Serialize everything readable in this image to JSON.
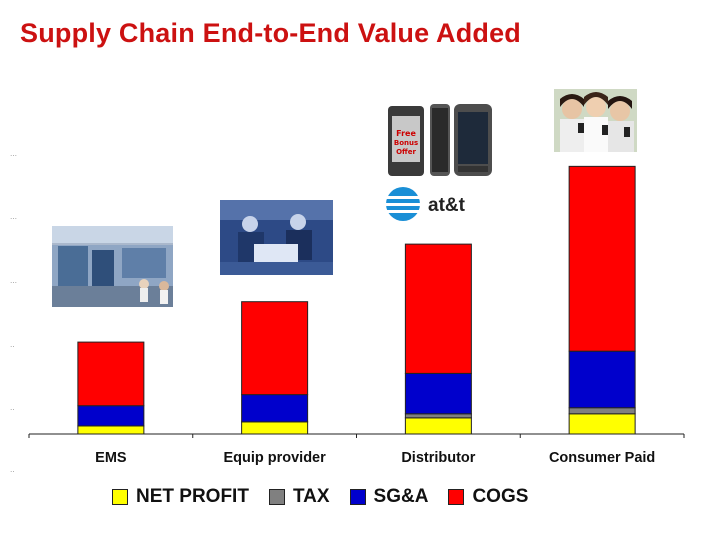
{
  "title": "Supply Chain End-to-End Value Added",
  "chart_data": {
    "type": "bar",
    "stacked": true,
    "categories": [
      "EMS",
      "Equip provider",
      "Distributor",
      "Consumer Paid"
    ],
    "series": [
      {
        "name": "NET PROFIT",
        "color": "#ffff00",
        "values": [
          8,
          12,
          16,
          20
        ]
      },
      {
        "name": "TAX",
        "color": "#808080",
        "values": [
          0,
          0,
          4,
          6
        ]
      },
      {
        "name": "SG&A",
        "color": "#0000cc",
        "values": [
          20,
          27,
          40,
          56
        ]
      },
      {
        "name": "COGS",
        "color": "#ff0000",
        "values": [
          63,
          92,
          128,
          183
        ]
      }
    ],
    "ylim": [
      0,
      300
    ],
    "legend_position": "bottom",
    "grid": false
  },
  "images": [
    {
      "name": "factory-floor-photo",
      "near": "EMS"
    },
    {
      "name": "engineers-meeting-photo",
      "near": "Equip provider"
    },
    {
      "name": "mobile-phones-photo",
      "near": "Distributor"
    },
    {
      "name": "att-logo",
      "near": "Distributor",
      "text": "at&t"
    },
    {
      "name": "people-with-phones-photo",
      "near": "Consumer Paid"
    }
  ]
}
